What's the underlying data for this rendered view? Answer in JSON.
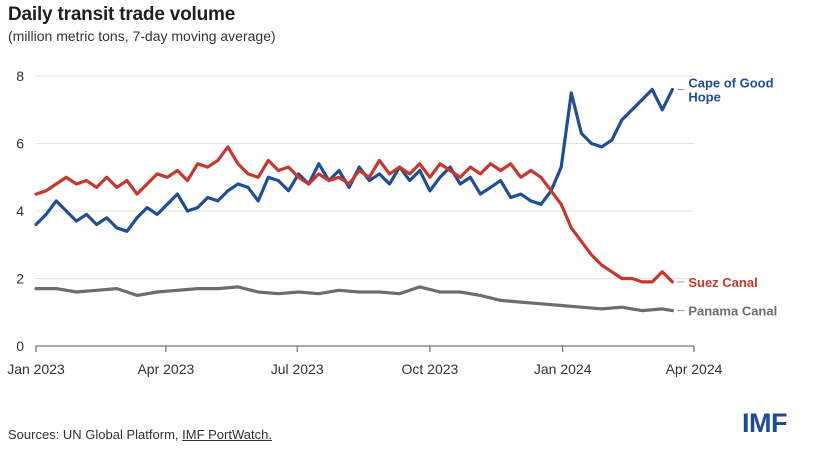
{
  "chart_data": {
    "type": "line",
    "title": "Daily transit trade volume",
    "subtitle": "(million metric tons, 7-day moving average)",
    "xlabel": "",
    "ylabel": "",
    "ylim": [
      0,
      8
    ],
    "yticks": [
      0,
      2,
      4,
      6,
      8
    ],
    "xticks": [
      {
        "date": "2023-01-01",
        "label": "Jan 2023"
      },
      {
        "date": "2023-04-01",
        "label": "Apr 2023"
      },
      {
        "date": "2023-07-01",
        "label": "Jul 2023"
      },
      {
        "date": "2023-10-01",
        "label": "Oct 2023"
      },
      {
        "date": "2024-01-01",
        "label": "Jan 2024"
      },
      {
        "date": "2024-04-01",
        "label": "Apr 2024"
      }
    ],
    "xlim": [
      "2023-01-01",
      "2024-04-01"
    ],
    "grid": "horizontal",
    "legend": "inline labels at right end of lines",
    "series": [
      {
        "name": "Cape of Good Hope",
        "label_lines": [
          "Cape of Good",
          "Hope"
        ],
        "color": "#1f4e96",
        "points": [
          [
            "2023-01-01",
            3.6
          ],
          [
            "2023-01-08",
            3.9
          ],
          [
            "2023-01-15",
            4.3
          ],
          [
            "2023-01-22",
            4.0
          ],
          [
            "2023-01-29",
            3.7
          ],
          [
            "2023-02-05",
            3.9
          ],
          [
            "2023-02-12",
            3.6
          ],
          [
            "2023-02-19",
            3.8
          ],
          [
            "2023-02-26",
            3.5
          ],
          [
            "2023-03-05",
            3.4
          ],
          [
            "2023-03-12",
            3.8
          ],
          [
            "2023-03-19",
            4.1
          ],
          [
            "2023-03-26",
            3.9
          ],
          [
            "2023-04-02",
            4.2
          ],
          [
            "2023-04-09",
            4.5
          ],
          [
            "2023-04-16",
            4.0
          ],
          [
            "2023-04-23",
            4.1
          ],
          [
            "2023-04-30",
            4.4
          ],
          [
            "2023-05-07",
            4.3
          ],
          [
            "2023-05-14",
            4.6
          ],
          [
            "2023-05-21",
            4.8
          ],
          [
            "2023-05-28",
            4.7
          ],
          [
            "2023-06-04",
            4.3
          ],
          [
            "2023-06-11",
            5.0
          ],
          [
            "2023-06-18",
            4.9
          ],
          [
            "2023-06-25",
            4.6
          ],
          [
            "2023-07-02",
            5.1
          ],
          [
            "2023-07-09",
            4.8
          ],
          [
            "2023-07-16",
            5.4
          ],
          [
            "2023-07-23",
            4.9
          ],
          [
            "2023-07-30",
            5.2
          ],
          [
            "2023-08-06",
            4.7
          ],
          [
            "2023-08-13",
            5.3
          ],
          [
            "2023-08-20",
            4.9
          ],
          [
            "2023-08-27",
            5.1
          ],
          [
            "2023-09-03",
            4.8
          ],
          [
            "2023-09-10",
            5.3
          ],
          [
            "2023-09-17",
            4.9
          ],
          [
            "2023-09-24",
            5.2
          ],
          [
            "2023-10-01",
            4.6
          ],
          [
            "2023-10-08",
            5.0
          ],
          [
            "2023-10-15",
            5.3
          ],
          [
            "2023-10-22",
            4.8
          ],
          [
            "2023-10-29",
            5.0
          ],
          [
            "2023-11-05",
            4.5
          ],
          [
            "2023-11-12",
            4.7
          ],
          [
            "2023-11-19",
            4.9
          ],
          [
            "2023-11-26",
            4.4
          ],
          [
            "2023-12-03",
            4.5
          ],
          [
            "2023-12-10",
            4.3
          ],
          [
            "2023-12-17",
            4.2
          ],
          [
            "2023-12-24",
            4.6
          ],
          [
            "2023-12-31",
            5.3
          ],
          [
            "2024-01-07",
            7.5
          ],
          [
            "2024-01-14",
            6.3
          ],
          [
            "2024-01-21",
            6.0
          ],
          [
            "2024-01-28",
            5.9
          ],
          [
            "2024-02-04",
            6.1
          ],
          [
            "2024-02-11",
            6.7
          ],
          [
            "2024-02-18",
            7.0
          ],
          [
            "2024-02-25",
            7.3
          ],
          [
            "2024-03-03",
            7.6
          ],
          [
            "2024-03-10",
            7.0
          ],
          [
            "2024-03-17",
            7.6
          ]
        ]
      },
      {
        "name": "Suez Canal",
        "label_lines": [
          "Suez Canal"
        ],
        "color": "#c8372d",
        "points": [
          [
            "2023-01-01",
            4.5
          ],
          [
            "2023-01-08",
            4.6
          ],
          [
            "2023-01-15",
            4.8
          ],
          [
            "2023-01-22",
            5.0
          ],
          [
            "2023-01-29",
            4.8
          ],
          [
            "2023-02-05",
            4.9
          ],
          [
            "2023-02-12",
            4.7
          ],
          [
            "2023-02-19",
            5.0
          ],
          [
            "2023-02-26",
            4.7
          ],
          [
            "2023-03-05",
            4.9
          ],
          [
            "2023-03-12",
            4.5
          ],
          [
            "2023-03-19",
            4.8
          ],
          [
            "2023-03-26",
            5.1
          ],
          [
            "2023-04-02",
            5.0
          ],
          [
            "2023-04-09",
            5.2
          ],
          [
            "2023-04-16",
            4.9
          ],
          [
            "2023-04-23",
            5.4
          ],
          [
            "2023-04-30",
            5.3
          ],
          [
            "2023-05-07",
            5.5
          ],
          [
            "2023-05-14",
            5.9
          ],
          [
            "2023-05-21",
            5.4
          ],
          [
            "2023-05-28",
            5.1
          ],
          [
            "2023-06-04",
            5.0
          ],
          [
            "2023-06-11",
            5.5
          ],
          [
            "2023-06-18",
            5.2
          ],
          [
            "2023-06-25",
            5.3
          ],
          [
            "2023-07-02",
            5.0
          ],
          [
            "2023-07-09",
            4.8
          ],
          [
            "2023-07-16",
            5.1
          ],
          [
            "2023-07-23",
            4.9
          ],
          [
            "2023-07-30",
            5.0
          ],
          [
            "2023-08-06",
            4.8
          ],
          [
            "2023-08-13",
            5.2
          ],
          [
            "2023-08-20",
            5.0
          ],
          [
            "2023-08-27",
            5.5
          ],
          [
            "2023-09-03",
            5.1
          ],
          [
            "2023-09-10",
            5.3
          ],
          [
            "2023-09-17",
            5.1
          ],
          [
            "2023-09-24",
            5.4
          ],
          [
            "2023-10-01",
            5.0
          ],
          [
            "2023-10-08",
            5.4
          ],
          [
            "2023-10-15",
            5.2
          ],
          [
            "2023-10-22",
            5.0
          ],
          [
            "2023-10-29",
            5.3
          ],
          [
            "2023-11-05",
            5.1
          ],
          [
            "2023-11-12",
            5.4
          ],
          [
            "2023-11-19",
            5.2
          ],
          [
            "2023-11-26",
            5.4
          ],
          [
            "2023-12-03",
            5.0
          ],
          [
            "2023-12-10",
            5.2
          ],
          [
            "2023-12-17",
            5.0
          ],
          [
            "2023-12-24",
            4.6
          ],
          [
            "2023-12-31",
            4.2
          ],
          [
            "2024-01-07",
            3.5
          ],
          [
            "2024-01-14",
            3.1
          ],
          [
            "2024-01-21",
            2.7
          ],
          [
            "2024-01-28",
            2.4
          ],
          [
            "2024-02-04",
            2.2
          ],
          [
            "2024-02-11",
            2.0
          ],
          [
            "2024-02-18",
            2.0
          ],
          [
            "2024-02-25",
            1.9
          ],
          [
            "2024-03-03",
            1.9
          ],
          [
            "2024-03-10",
            2.2
          ],
          [
            "2024-03-17",
            1.9
          ]
        ]
      },
      {
        "name": "Panama Canal",
        "label_lines": [
          "Panama Canal"
        ],
        "color": "#6d6d6d",
        "points": [
          [
            "2023-01-01",
            1.7
          ],
          [
            "2023-01-15",
            1.7
          ],
          [
            "2023-01-29",
            1.6
          ],
          [
            "2023-02-12",
            1.65
          ],
          [
            "2023-02-26",
            1.7
          ],
          [
            "2023-03-12",
            1.5
          ],
          [
            "2023-03-26",
            1.6
          ],
          [
            "2023-04-09",
            1.65
          ],
          [
            "2023-04-23",
            1.7
          ],
          [
            "2023-05-07",
            1.7
          ],
          [
            "2023-05-21",
            1.75
          ],
          [
            "2023-06-04",
            1.6
          ],
          [
            "2023-06-18",
            1.55
          ],
          [
            "2023-07-02",
            1.6
          ],
          [
            "2023-07-16",
            1.55
          ],
          [
            "2023-07-30",
            1.65
          ],
          [
            "2023-08-13",
            1.6
          ],
          [
            "2023-08-27",
            1.6
          ],
          [
            "2023-09-10",
            1.55
          ],
          [
            "2023-09-24",
            1.75
          ],
          [
            "2023-10-08",
            1.6
          ],
          [
            "2023-10-22",
            1.6
          ],
          [
            "2023-11-05",
            1.5
          ],
          [
            "2023-11-19",
            1.35
          ],
          [
            "2023-12-03",
            1.3
          ],
          [
            "2023-12-17",
            1.25
          ],
          [
            "2023-12-31",
            1.2
          ],
          [
            "2024-01-14",
            1.15
          ],
          [
            "2024-01-28",
            1.1
          ],
          [
            "2024-02-11",
            1.15
          ],
          [
            "2024-02-25",
            1.05
          ],
          [
            "2024-03-10",
            1.1
          ],
          [
            "2024-03-17",
            1.05
          ]
        ]
      }
    ]
  },
  "footer": {
    "source_prefix": "Sources: UN Global Platform, ",
    "source_link": "IMF PortWatch.",
    "logo_text": "IMF"
  }
}
